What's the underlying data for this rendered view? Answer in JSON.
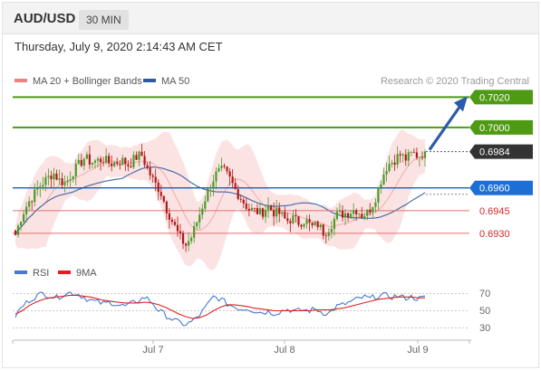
{
  "header": {
    "symbol": "AUD/USD",
    "timeframe": "30 MIN",
    "datetime": "Thursday, July 9, 2020 2:14:43 AM CET"
  },
  "colors": {
    "bollinger_legend": "#f08080",
    "ma50": "#2c5b9e",
    "resistance": "#4f9a13",
    "support_line": "#1f5fa8",
    "support_2": "#e07070",
    "label_current": "#333333",
    "label_support1": "#1d6fd6",
    "label_support_text": "#d62828",
    "arrow": "#2a5caa",
    "rsi": "#4a78d0",
    "rsi_ma": "#e02020",
    "bull_candle": "#4a9a2a",
    "bear_candle": "#b01818"
  },
  "chart_data": [
    {
      "type": "candlestick",
      "title": "",
      "legend": [
        {
          "name": "MA 20 + Bollinger Bands",
          "color": "#f08080"
        },
        {
          "name": "MA 50",
          "color": "#2c5b9e"
        }
      ],
      "credit": "Research © 2020 Trading Central",
      "y_range": [
        0.6915,
        0.7025
      ],
      "x_tick_labels": [
        "Jul 7",
        "Jul 8",
        "Jul 9"
      ],
      "levels": [
        {
          "label": "0.7020",
          "value": 0.702,
          "kind": "resistance"
        },
        {
          "label": "0.7000",
          "value": 0.7,
          "kind": "resistance"
        },
        {
          "label": "0.6984",
          "value": 0.6984,
          "kind": "current"
        },
        {
          "label": "0.6960",
          "value": 0.696,
          "kind": "support_primary"
        },
        {
          "label": "0.6945",
          "value": 0.6945,
          "kind": "support"
        },
        {
          "label": "0.6930",
          "value": 0.693,
          "kind": "support"
        }
      ],
      "close_path": [
        0.6929,
        0.6942,
        0.695,
        0.6956,
        0.6962,
        0.6966,
        0.697,
        0.6965,
        0.6963,
        0.697,
        0.6975,
        0.698,
        0.6977,
        0.6978,
        0.6979,
        0.6976,
        0.6977,
        0.6978,
        0.6975,
        0.698,
        0.6982,
        0.6972,
        0.6964,
        0.6958,
        0.6946,
        0.6937,
        0.6928,
        0.6922,
        0.6928,
        0.694,
        0.6952,
        0.6963,
        0.697,
        0.6972,
        0.6966,
        0.6958,
        0.6952,
        0.6946,
        0.6945,
        0.6943,
        0.6948,
        0.6944,
        0.6943,
        0.6938,
        0.694,
        0.6937,
        0.6939,
        0.6934,
        0.6936,
        0.693,
        0.6935,
        0.6942,
        0.6943,
        0.6944,
        0.6946,
        0.6942,
        0.6944,
        0.6952,
        0.6965,
        0.6975,
        0.6978,
        0.6982,
        0.6979,
        0.6983,
        0.6981,
        0.6984
      ],
      "forecast_arrow": {
        "from": 0.6984,
        "to": 0.702
      }
    },
    {
      "type": "line",
      "title": "",
      "legend": [
        {
          "name": "RSI",
          "color": "#4a78d0"
        },
        {
          "name": "9MA",
          "color": "#e02020"
        }
      ],
      "y_ticks": [
        "70",
        "50",
        "30"
      ],
      "ylim": [
        20,
        80
      ],
      "series": [
        {
          "name": "RSI",
          "values": [
            44,
            55,
            62,
            67,
            70,
            68,
            65,
            69,
            71,
            70,
            66,
            62,
            60,
            58,
            60,
            57,
            55,
            58,
            62,
            66,
            60,
            50,
            45,
            40,
            36,
            34,
            38,
            45,
            55,
            66,
            64,
            58,
            55,
            52,
            53,
            50,
            48,
            49,
            47,
            50,
            52,
            49,
            51,
            50,
            52,
            48,
            47,
            55,
            57,
            60,
            63,
            66,
            64,
            67,
            68,
            66,
            67,
            65,
            66,
            64,
            65
          ]
        },
        {
          "name": "9MA",
          "values": [
            46,
            50,
            56,
            60,
            63,
            65,
            66,
            67,
            68,
            68,
            67,
            66,
            64,
            62,
            61,
            60,
            59,
            59,
            59,
            60,
            59,
            57,
            54,
            50,
            46,
            43,
            41,
            42,
            45,
            50,
            54,
            57,
            57,
            56,
            55,
            53,
            52,
            51,
            50,
            50,
            50,
            50,
            50,
            50,
            51,
            51,
            51,
            52,
            53,
            55,
            57,
            59,
            61,
            63,
            64,
            65,
            66,
            66,
            66,
            65,
            65
          ]
        }
      ]
    }
  ]
}
